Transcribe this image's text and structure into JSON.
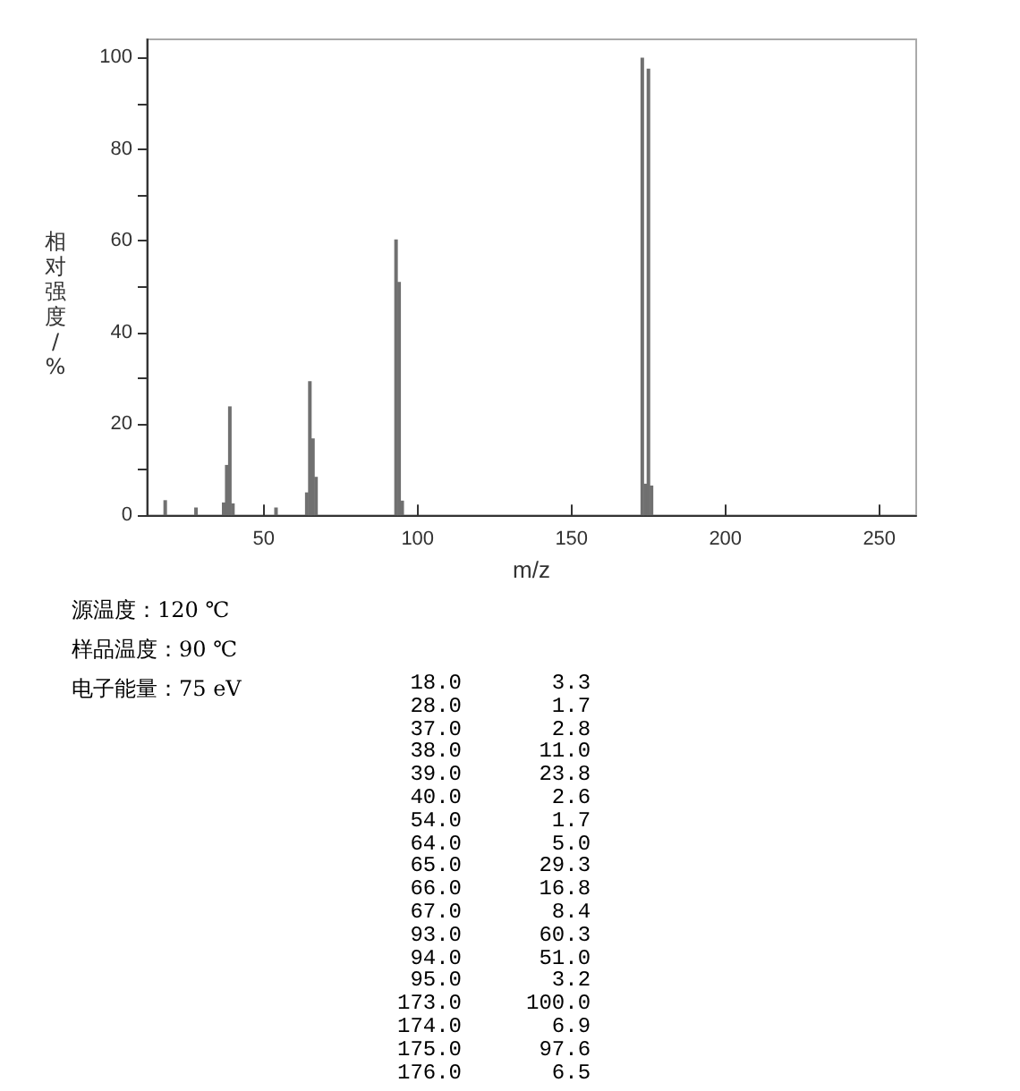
{
  "chart_data": {
    "type": "bar",
    "xlabel": "m/z",
    "ylabel": "相对强度/%",
    "x": [
      18,
      28,
      37,
      38,
      39,
      40,
      54,
      64,
      65,
      66,
      67,
      93,
      94,
      95,
      173,
      174,
      175,
      176
    ],
    "values": [
      3.3,
      1.7,
      2.8,
      11.0,
      23.8,
      2.6,
      1.7,
      5.0,
      29.3,
      16.8,
      8.4,
      60.3,
      51.0,
      3.2,
      100.0,
      6.9,
      97.6,
      6.5
    ],
    "color": "#707070",
    "xlim": [
      12,
      262
    ],
    "xticks": [
      50,
      100,
      150,
      200,
      250
    ],
    "ylim": [
      0,
      104
    ],
    "yticks": [
      0,
      20,
      40,
      60,
      80,
      100
    ],
    "annotations": [
      "源温度：120 ℃",
      "样品温度：90 ℃",
      "电子能量：75 eV",
      " 18.0       3.3",
      " 28.0       1.7",
      " 37.0       2.8",
      " 38.0      11.0",
      " 39.0      23.8",
      " 40.0       2.6",
      " 54.0       1.7",
      " 64.0       5.0",
      " 65.0      29.3",
      " 66.0      16.8",
      " 67.0       8.4",
      " 93.0      60.3",
      " 94.0      51.0",
      " 95.0       3.2",
      "173.0     100.0",
      "174.0       6.9",
      "175.0      97.6",
      "176.0       6.5"
    ]
  }
}
